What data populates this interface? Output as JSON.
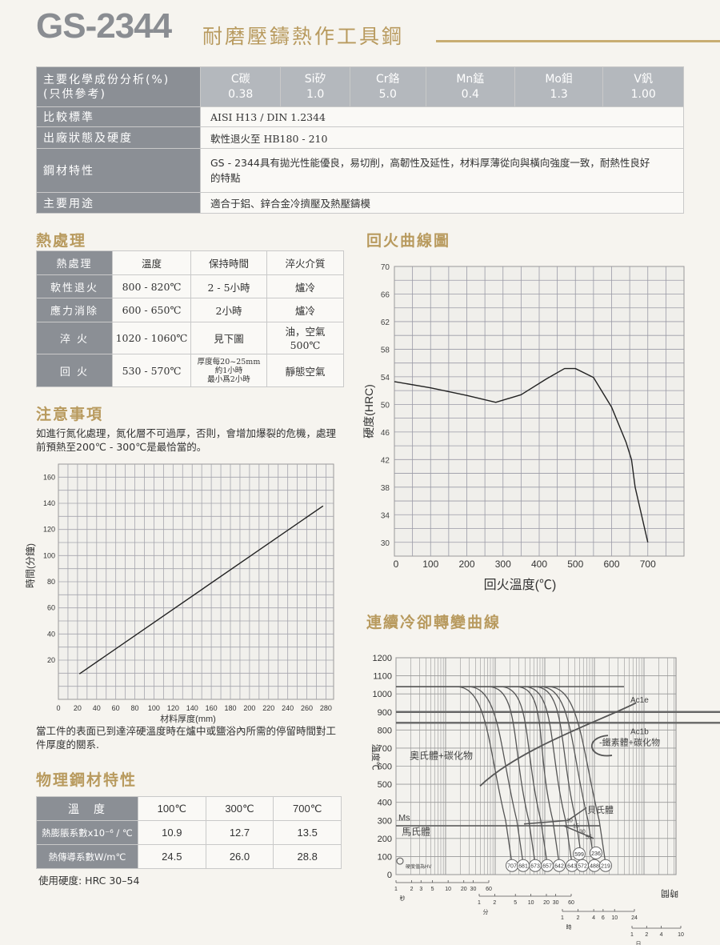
{
  "header": {
    "title": "GS-2344",
    "subtitle": "耐磨壓鑄熱作工具鋼"
  },
  "spec_table": {
    "composition_label_1": "主要化學成份分析(%)",
    "composition_label_2": "(只供參考)",
    "elements": [
      {
        "name": "C碳",
        "value": "0.38"
      },
      {
        "name": "Si矽",
        "value": "1.0"
      },
      {
        "name": "Cr鉻",
        "value": "5.0"
      },
      {
        "name": "Mn錳",
        "value": "0.4"
      },
      {
        "name": "Mo鉬",
        "value": "1.3"
      },
      {
        "name": "V釩",
        "value": "1.00"
      }
    ],
    "rows": [
      {
        "label": "比較標準",
        "value": "AISI  H13 / DIN 1.2344"
      },
      {
        "label": "出廠狀態及硬度",
        "value": "軟性退火至 HB180 - 210"
      },
      {
        "label": "鋼材特性",
        "value": "GS - 2344具有拋光性能優良，易切削，高韌性及延性，材料厚薄從向與橫向強度一致，耐熱性良好的特點"
      },
      {
        "label": "主要用途",
        "value": "適合于鋁、鋅合金冷擠壓及熱壓鑄模"
      }
    ]
  },
  "heat_treatment": {
    "heading": "熱處理",
    "columns": [
      "熱處理",
      "溫度",
      "保持時間",
      "淬火介質"
    ],
    "rows": [
      {
        "name": "軟性退火",
        "temp": "800 - 820℃",
        "time": "2 - 5小時",
        "medium": "爐冷"
      },
      {
        "name": "應力消除",
        "temp": "600 - 650℃",
        "time": "2小時",
        "medium": "爐冷"
      },
      {
        "name": "淬 火",
        "temp": "1020 - 1060℃",
        "time": "見下圖",
        "medium": "油，空氣",
        "medium2": "500℃"
      },
      {
        "name": "回 火",
        "temp": "530 - 570℃",
        "time": "厚度每20~25mm",
        "time2": "約1小時",
        "time3": "最小爲2小時",
        "medium": "靜態空氣"
      }
    ]
  },
  "notes": {
    "heading": "注意事項",
    "text": "如進行氮化處理，氮化層不可過厚，否則，會增加爆裂的危機，處理前預熱至200℃ - 300℃是最恰當的。"
  },
  "holding_caption": "當工件的表面已到達淬硬溫度時在爐中或鹽浴內所需的停留時間對工件厚度的關系.",
  "physical": {
    "heading": "物理鋼材特性",
    "columns": [
      "溫　度",
      "100℃",
      "300℃",
      "700℃"
    ],
    "rows": [
      {
        "label": "熱膨脹系數x10⁻⁶ / ℃",
        "values": [
          "10.9",
          "12.7",
          "13.5"
        ]
      },
      {
        "label": "熱傳導系數W/m℃",
        "values": [
          "24.5",
          "26.0",
          "28.8"
        ]
      }
    ],
    "usage_hardness": "使用硬度: HRC 30–54"
  },
  "tempering_heading": "回火曲線圖",
  "cct_heading": "連續冷卻轉變曲線",
  "chart_data": [
    {
      "type": "line",
      "xlabel": "材料厚度(mm)",
      "ylabel": "時間(分鐘)",
      "xlim": [
        0,
        288
      ],
      "ylim": [
        -10,
        170
      ],
      "xticks": [
        0,
        20,
        40,
        60,
        80,
        100,
        120,
        140,
        160,
        180,
        200,
        220,
        240,
        260,
        280
      ],
      "yticks": [
        20,
        40,
        60,
        80,
        100,
        120,
        140,
        160
      ],
      "grid": true,
      "x": [
        22,
        277
      ],
      "y": [
        9.5,
        138
      ]
    },
    {
      "type": "line",
      "xlabel": "回火溫度(℃)",
      "ylabel": "硬度(HRC)",
      "xlim": [
        0,
        800
      ],
      "ylim": [
        28,
        70
      ],
      "xticks": [
        0,
        100,
        200,
        300,
        400,
        500,
        600,
        700
      ],
      "yticks": [
        30,
        34,
        38,
        42,
        46,
        50,
        54,
        58,
        62,
        66,
        70
      ],
      "grid": true,
      "x": [
        0,
        100,
        200,
        280,
        350,
        420,
        470,
        500,
        550,
        600,
        640,
        655,
        665,
        700
      ],
      "y": [
        53.3,
        52.4,
        51.3,
        50.3,
        51.4,
        53.7,
        55.2,
        55.2,
        53.9,
        49.6,
        44.5,
        42,
        38,
        30
      ]
    },
    {
      "type": "line",
      "ylabel": "溫度℃",
      "xlabel": "時間",
      "ylim": [
        0,
        1200
      ],
      "yticks": [
        0,
        100,
        200,
        300,
        400,
        500,
        600,
        700,
        800,
        900,
        1000,
        1100,
        1200
      ],
      "x_scales": [
        {
          "unit": "秒",
          "ticks": [
            "1",
            "2",
            "3",
            "5",
            "10",
            "20",
            "30",
            "60"
          ]
        },
        {
          "unit": "分",
          "ticks": [
            "1",
            "2",
            "5",
            "10",
            "20",
            "30",
            "60"
          ]
        },
        {
          "unit": "時",
          "ticks": [
            "1",
            "2",
            "4",
            "6",
            "10",
            "24"
          ]
        },
        {
          "unit": "日",
          "ticks": [
            "1",
            "2",
            "4",
            "10"
          ]
        }
      ],
      "lines": [
        {
          "name": "Ac1e",
          "temp": 900
        },
        {
          "name": "Ac1b",
          "temp": 840
        },
        {
          "name": "Ms",
          "temp": 270
        }
      ],
      "austenitizing_temp": 1040,
      "regions": [
        "奧氏體+碳化物",
        "鐵素體+碳化物",
        "貝氏體",
        "馬氏體"
      ],
      "bainite_percent_labels": [
        "10",
        "15",
        "30",
        "55"
      ],
      "hardness_note": "硬度值為HV",
      "hardness_values": [
        "707",
        "681",
        "673",
        "657",
        "642",
        "643",
        "572",
        "488",
        "219"
      ],
      "hardness_values_upper": [
        "599",
        "236"
      ],
      "grid": true
    }
  ]
}
